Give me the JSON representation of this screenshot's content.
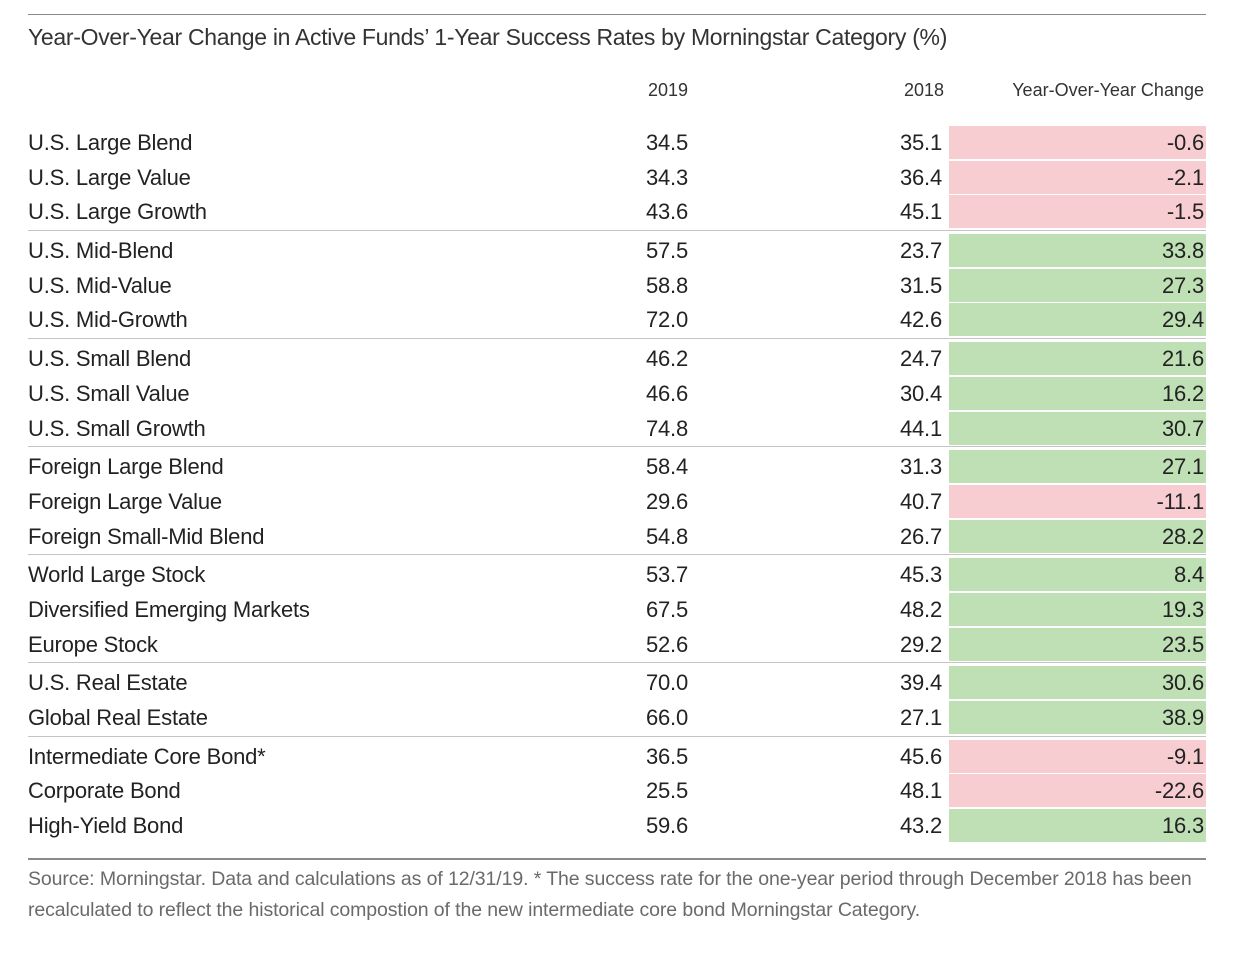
{
  "chart_data": {
    "type": "table",
    "title": "Year-Over-Year Change in Active Funds’ 1-Year Success Rates by Morningstar Category (%)",
    "columns": [
      "2019",
      "2018",
      "Year-Over-Year Change"
    ],
    "groups": [
      [
        {
          "category": "U.S. Large Blend",
          "v2019": "34.5",
          "v2018": "35.1",
          "change": "-0.6"
        },
        {
          "category": "U.S. Large Value",
          "v2019": "34.3",
          "v2018": "36.4",
          "change": "-2.1"
        },
        {
          "category": "U.S. Large Growth",
          "v2019": "43.6",
          "v2018": "45.1",
          "change": "-1.5"
        }
      ],
      [
        {
          "category": "U.S. Mid-Blend",
          "v2019": "57.5",
          "v2018": "23.7",
          "change": "33.8"
        },
        {
          "category": "U.S. Mid-Value",
          "v2019": "58.8",
          "v2018": "31.5",
          "change": "27.3"
        },
        {
          "category": "U.S. Mid-Growth",
          "v2019": "72.0",
          "v2018": "42.6",
          "change": "29.4"
        }
      ],
      [
        {
          "category": "U.S. Small Blend",
          "v2019": "46.2",
          "v2018": "24.7",
          "change": "21.6"
        },
        {
          "category": "U.S. Small Value",
          "v2019": "46.6",
          "v2018": "30.4",
          "change": "16.2"
        },
        {
          "category": "U.S. Small Growth",
          "v2019": "74.8",
          "v2018": "44.1",
          "change": "30.7"
        }
      ],
      [
        {
          "category": "Foreign Large Blend",
          "v2019": "58.4",
          "v2018": "31.3",
          "change": "27.1"
        },
        {
          "category": "Foreign Large Value",
          "v2019": "29.6",
          "v2018": "40.7",
          "change": "-11.1"
        },
        {
          "category": "Foreign Small-Mid Blend",
          "v2019": "54.8",
          "v2018": "26.7",
          "change": "28.2"
        }
      ],
      [
        {
          "category": "World Large Stock",
          "v2019": "53.7",
          "v2018": "45.3",
          "change": "8.4"
        },
        {
          "category": "Diversified Emerging Markets",
          "v2019": "67.5",
          "v2018": "48.2",
          "change": "19.3"
        },
        {
          "category": "Europe Stock",
          "v2019": "52.6",
          "v2018": "29.2",
          "change": "23.5"
        }
      ],
      [
        {
          "category": "U.S. Real Estate",
          "v2019": "70.0",
          "v2018": "39.4",
          "change": "30.6"
        },
        {
          "category": "Global Real Estate",
          "v2019": "66.0",
          "v2018": "27.1",
          "change": "38.9"
        }
      ],
      [
        {
          "category": "Intermediate Core Bond*",
          "v2019": "36.5",
          "v2018": "45.6",
          "change": "-9.1"
        },
        {
          "category": "Corporate Bond",
          "v2019": "25.5",
          "v2018": "48.1",
          "change": "-22.6"
        },
        {
          "category": "High-Yield Bond",
          "v2019": "59.6",
          "v2018": "43.2",
          "change": "16.3"
        }
      ]
    ],
    "source_note": "Source: Morningstar. Data and calculations as of 12/31/19. * The success rate for the one-year period through December 2018 has been recalculated to reflect the historical compostion of the new intermediate core bond Morningstar Category."
  },
  "colors": {
    "positive_fill": "#bfe0b5",
    "negative_fill": "#f7cdd2"
  }
}
